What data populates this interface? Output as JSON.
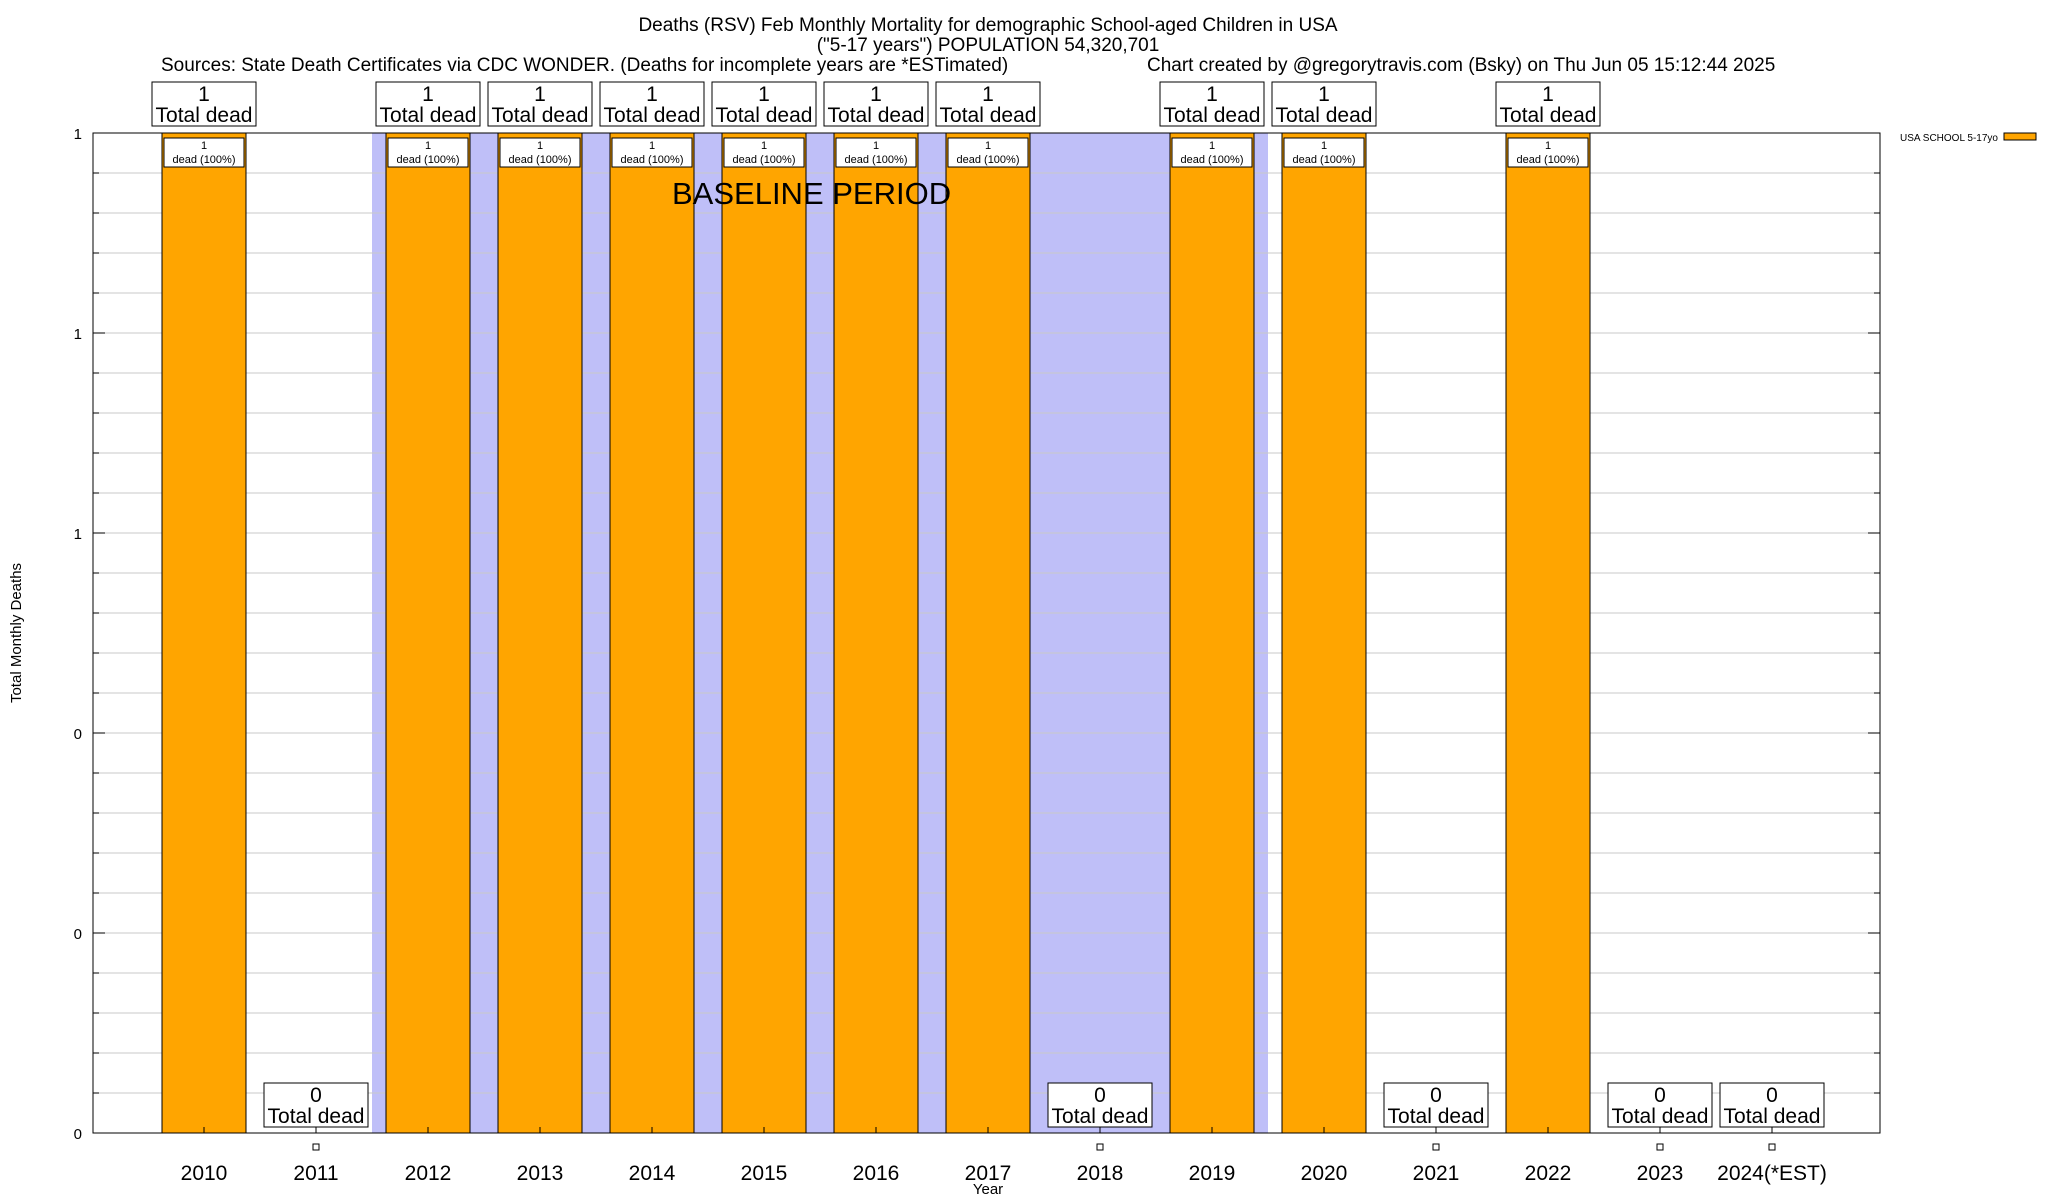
{
  "header": {
    "title_line1": "Deaths (RSV) Feb Monthly Mortality for demographic School-aged Children in USA",
    "title_line2": "(\"5-17 years\") POPULATION 54,320,701",
    "sources": "Sources: State Death Certificates via CDC WONDER. (Deaths for incomplete years are *ESTimated)",
    "credit": "Chart created by @gregorytravis.com (Bsky) on Thu Jun 05 15:12:44 2025"
  },
  "chart_data": {
    "type": "bar",
    "title": "Deaths (RSV) Feb Monthly Mortality for demographic School-aged Children in USA",
    "xlabel": "Year",
    "ylabel": "Total Monthly Deaths",
    "categories": [
      "2010",
      "2011",
      "2012",
      "2013",
      "2014",
      "2015",
      "2016",
      "2017",
      "2018",
      "2019",
      "2020",
      "2021",
      "2022",
      "2023",
      "2024(*EST)"
    ],
    "series": [
      {
        "name": "USA SCHOOL 5-17yo",
        "color": "#ffa500",
        "values": [
          1,
          0,
          1,
          1,
          1,
          1,
          1,
          1,
          0,
          1,
          1,
          0,
          1,
          0,
          0
        ]
      }
    ],
    "ylim": [
      0,
      1
    ],
    "y_tick_labels": [
      "0",
      "0",
      "0",
      "1",
      "1",
      "1"
    ],
    "total_label_suffix": "Total dead",
    "segment_label_suffix": "dead (100%)",
    "baseline_label": "BASELINE PERIOD",
    "baseline_years": [
      "2012",
      "2013",
      "2014",
      "2015",
      "2016",
      "2017",
      "2018",
      "2019"
    ],
    "baseline_color": "#bfbff8",
    "bar_color": "#ffa500",
    "grid": true,
    "legend_position": "top-right"
  }
}
